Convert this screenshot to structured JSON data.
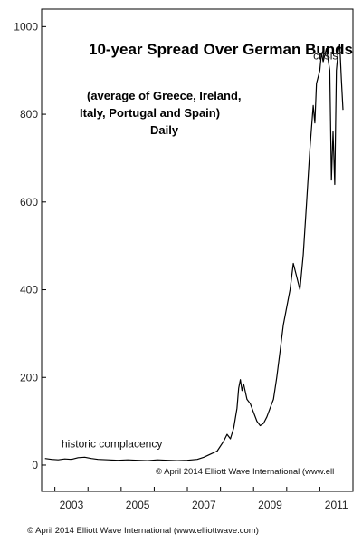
{
  "chart_data": {
    "type": "line",
    "title": "10-year Spread Over German Bunds",
    "subtitle_lines": [
      "(average of Greece, Ireland,",
      "Italy, Portugal and Spain)",
      "Daily"
    ],
    "xlabel": "",
    "ylabel": "",
    "xlim": [
      2002.6,
      2012.0
    ],
    "ylim": [
      -60,
      1040
    ],
    "y_ticks": [
      0,
      200,
      400,
      600,
      800,
      1000
    ],
    "x_ticks": [
      2003,
      2005,
      2007,
      2009,
      2011
    ],
    "grid": false,
    "annotations": [
      {
        "text": "historic complacency",
        "x": 2003.2,
        "y": 40
      },
      {
        "text": "crisis",
        "x": 2010.8,
        "y": 925
      }
    ],
    "credit_inside": "© April 2014 Elliott Wave International (www.ell",
    "series": [
      {
        "values": [
          {
            "x": 2002.7,
            "y": 15
          },
          {
            "x": 2002.9,
            "y": 13
          },
          {
            "x": 2003.1,
            "y": 12
          },
          {
            "x": 2003.3,
            "y": 14
          },
          {
            "x": 2003.5,
            "y": 13
          },
          {
            "x": 2003.7,
            "y": 17
          },
          {
            "x": 2003.9,
            "y": 18
          },
          {
            "x": 2004.1,
            "y": 15
          },
          {
            "x": 2004.3,
            "y": 13
          },
          {
            "x": 2004.6,
            "y": 12
          },
          {
            "x": 2004.9,
            "y": 11
          },
          {
            "x": 2005.2,
            "y": 12
          },
          {
            "x": 2005.5,
            "y": 11
          },
          {
            "x": 2005.8,
            "y": 10
          },
          {
            "x": 2006.1,
            "y": 12
          },
          {
            "x": 2006.4,
            "y": 11
          },
          {
            "x": 2006.7,
            "y": 10
          },
          {
            "x": 2007.0,
            "y": 11
          },
          {
            "x": 2007.3,
            "y": 13
          },
          {
            "x": 2007.5,
            "y": 18
          },
          {
            "x": 2007.7,
            "y": 25
          },
          {
            "x": 2007.9,
            "y": 32
          },
          {
            "x": 2008.1,
            "y": 55
          },
          {
            "x": 2008.2,
            "y": 70
          },
          {
            "x": 2008.3,
            "y": 60
          },
          {
            "x": 2008.4,
            "y": 85
          },
          {
            "x": 2008.5,
            "y": 130
          },
          {
            "x": 2008.55,
            "y": 175
          },
          {
            "x": 2008.6,
            "y": 195
          },
          {
            "x": 2008.65,
            "y": 170
          },
          {
            "x": 2008.7,
            "y": 185
          },
          {
            "x": 2008.8,
            "y": 150
          },
          {
            "x": 2008.9,
            "y": 140
          },
          {
            "x": 2009.0,
            "y": 120
          },
          {
            "x": 2009.1,
            "y": 100
          },
          {
            "x": 2009.2,
            "y": 90
          },
          {
            "x": 2009.3,
            "y": 95
          },
          {
            "x": 2009.4,
            "y": 110
          },
          {
            "x": 2009.5,
            "y": 130
          },
          {
            "x": 2009.6,
            "y": 150
          },
          {
            "x": 2009.7,
            "y": 200
          },
          {
            "x": 2009.8,
            "y": 260
          },
          {
            "x": 2009.9,
            "y": 320
          },
          {
            "x": 2010.0,
            "y": 360
          },
          {
            "x": 2010.1,
            "y": 400
          },
          {
            "x": 2010.2,
            "y": 460
          },
          {
            "x": 2010.3,
            "y": 430
          },
          {
            "x": 2010.4,
            "y": 400
          },
          {
            "x": 2010.5,
            "y": 480
          },
          {
            "x": 2010.6,
            "y": 600
          },
          {
            "x": 2010.7,
            "y": 720
          },
          {
            "x": 2010.8,
            "y": 820
          },
          {
            "x": 2010.85,
            "y": 780
          },
          {
            "x": 2010.9,
            "y": 870
          },
          {
            "x": 2011.0,
            "y": 900
          },
          {
            "x": 2011.05,
            "y": 940
          },
          {
            "x": 2011.1,
            "y": 920
          },
          {
            "x": 2011.2,
            "y": 950
          },
          {
            "x": 2011.3,
            "y": 900
          },
          {
            "x": 2011.35,
            "y": 650
          },
          {
            "x": 2011.4,
            "y": 760
          },
          {
            "x": 2011.45,
            "y": 640
          },
          {
            "x": 2011.5,
            "y": 900
          },
          {
            "x": 2011.55,
            "y": 940
          },
          {
            "x": 2011.6,
            "y": 960
          },
          {
            "x": 2011.65,
            "y": 880
          },
          {
            "x": 2011.7,
            "y": 810
          }
        ]
      }
    ]
  },
  "footer": "© April 2014 Elliott Wave International (www.elliottwave.com)"
}
